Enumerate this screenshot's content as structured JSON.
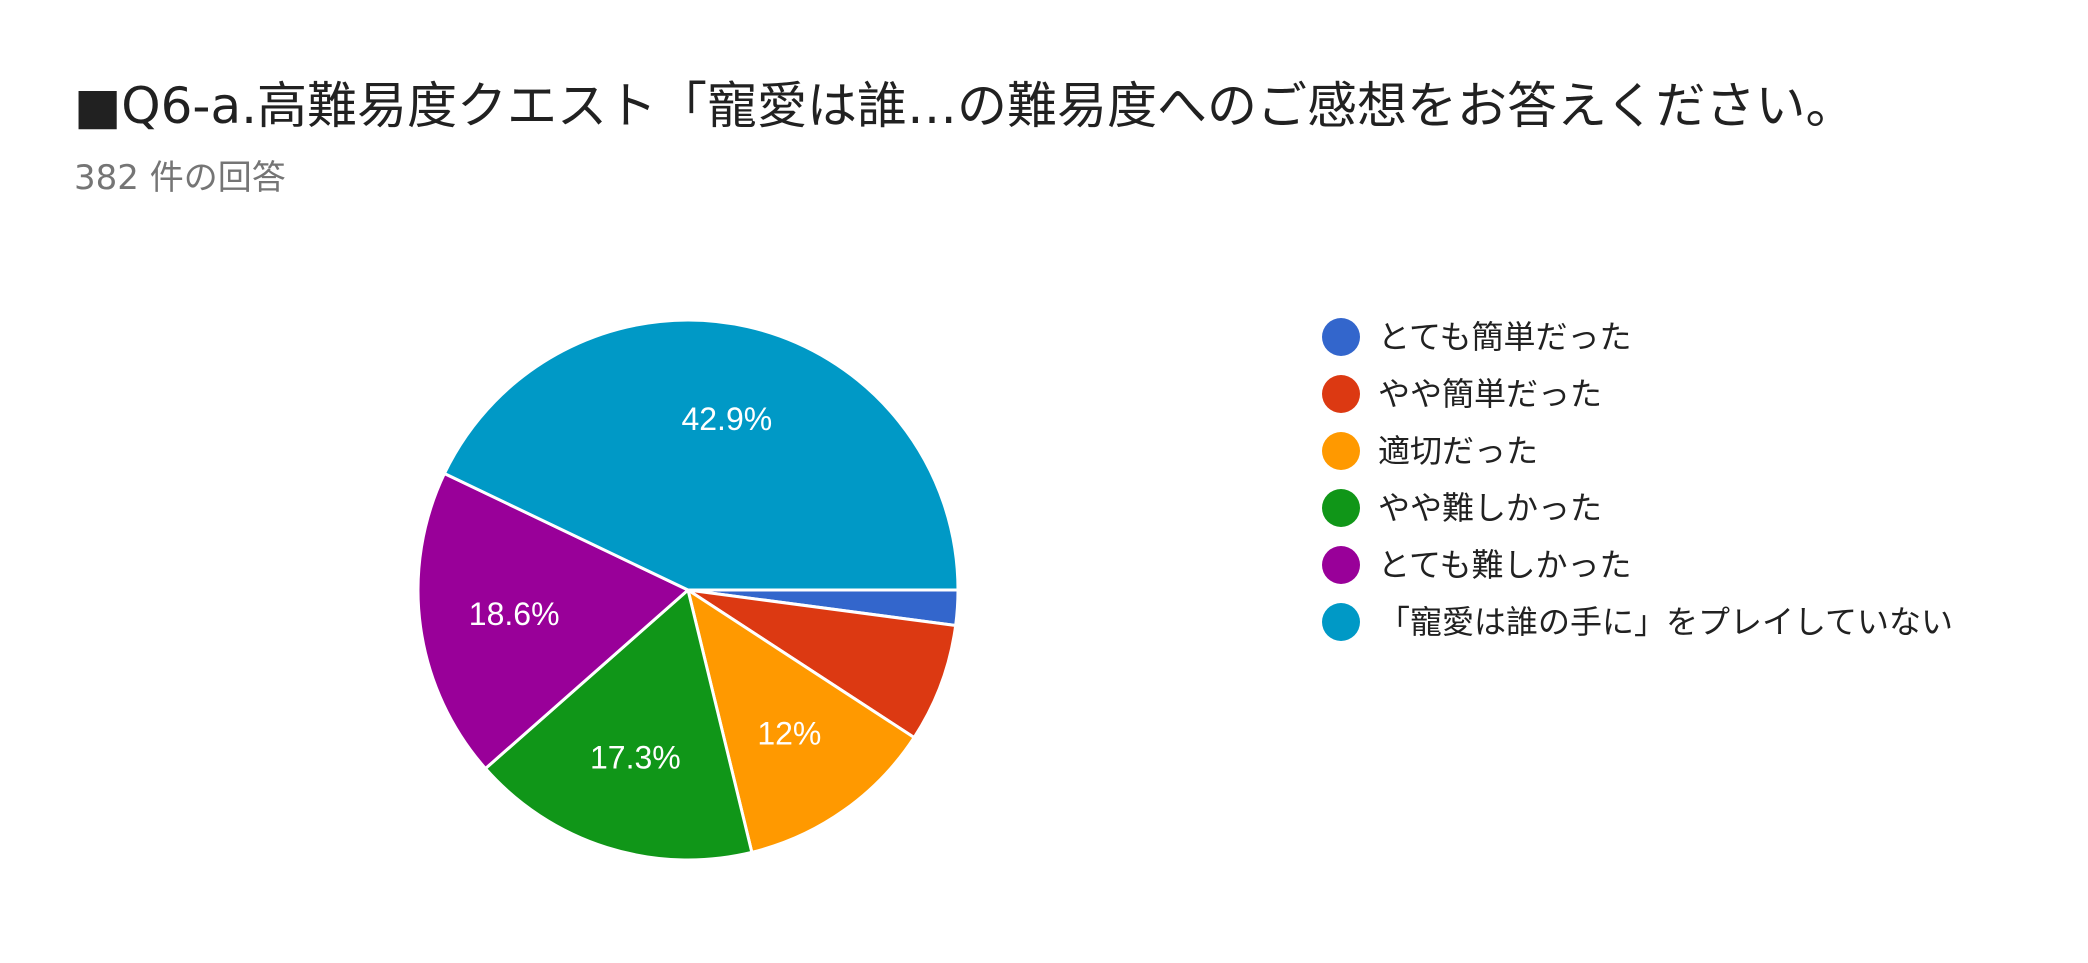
{
  "chart_data": {
    "type": "pie",
    "title": "■Q6-a.高難易度クエスト「寵愛は誰…の難易度へのご感想をお答えください。",
    "subtitle": "382 件の回答",
    "legend_position": "right",
    "slices": [
      {
        "label": "とても簡単だった",
        "value": 2.1,
        "display_label": "",
        "color": "#3366cc"
      },
      {
        "label": "やや簡単だった",
        "value": 7.1,
        "display_label": "",
        "color": "#dc3912"
      },
      {
        "label": "適切だった",
        "value": 12.0,
        "display_label": "12%",
        "color": "#ff9900"
      },
      {
        "label": "やや難しかった",
        "value": 17.3,
        "display_label": "17.3%",
        "color": "#109618"
      },
      {
        "label": "とても難しかった",
        "value": 18.6,
        "display_label": "18.6%",
        "color": "#990099"
      },
      {
        "label": "「寵愛は誰の手に」をプレイしていない",
        "value": 42.9,
        "display_label": "42.9%",
        "color": "#0099c6"
      }
    ]
  }
}
